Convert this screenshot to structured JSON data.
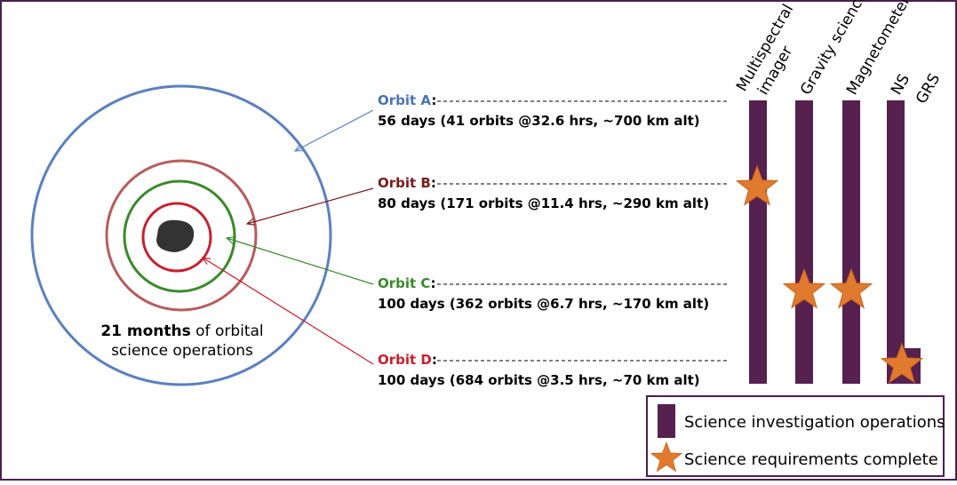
{
  "center_label": {
    "bold": "21 months",
    "rest": " of orbital",
    "line2": "science operations"
  },
  "separator": ":",
  "orbits": [
    {
      "name": "Orbit A",
      "detail": "56 days (41 orbits @32.6 hrs, ~700 km alt)"
    },
    {
      "name": "Orbit B",
      "detail": "80 days (171 orbits @11.4 hrs, ~290 km alt)"
    },
    {
      "name": "Orbit C",
      "detail": "100 days (362 orbits @6.7 hrs, ~170 km alt)"
    },
    {
      "name": "Orbit D",
      "detail": "100 days (684 orbits @3.5 hrs, ~70 km alt)"
    }
  ],
  "instruments": {
    "multispectral_1": "Multispectral",
    "multispectral_2": "imager",
    "gravity": "Gravity science",
    "magnetometer": "Magnetometer",
    "ns": "NS",
    "grs": "GRS"
  },
  "legend": {
    "operations": "Science investigation operations",
    "complete": "Science requirements complete"
  }
}
